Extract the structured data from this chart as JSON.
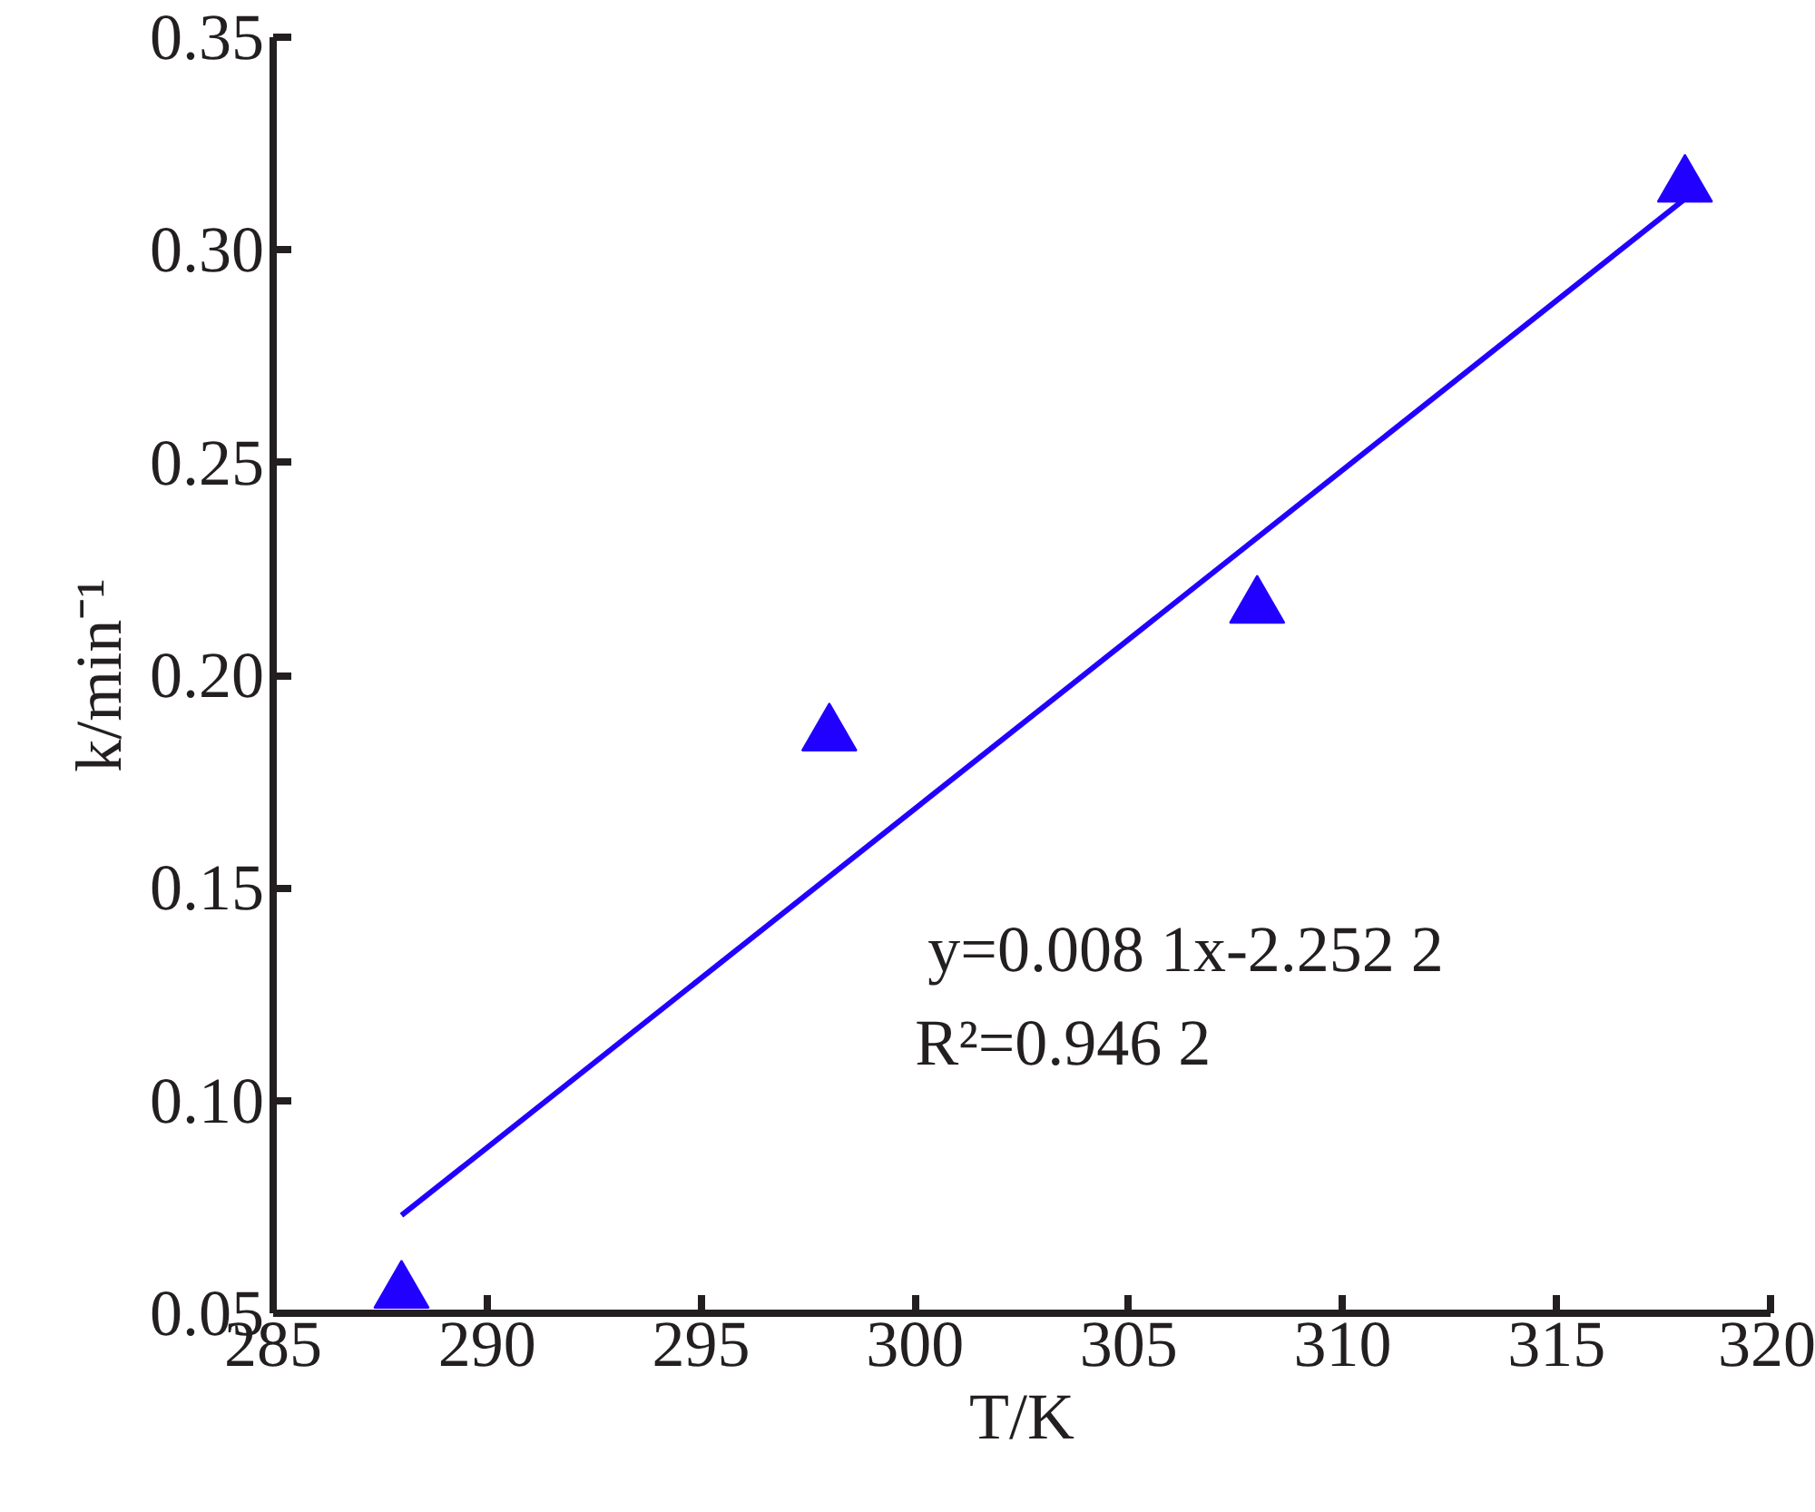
{
  "chart_data": {
    "type": "scatter",
    "xlabel": "T/K",
    "ylabel": "k/min⁻¹",
    "xlim": [
      285,
      320
    ],
    "ylim": [
      0.05,
      0.35
    ],
    "xticks": [
      285,
      290,
      295,
      300,
      305,
      310,
      315,
      320
    ],
    "yticks": [
      {
        "value": 0.05,
        "label": "0.05"
      },
      {
        "value": 0.1,
        "label": "0.10"
      },
      {
        "value": 0.15,
        "label": "0.15"
      },
      {
        "value": 0.2,
        "label": "0.20"
      },
      {
        "value": 0.25,
        "label": "0.25"
      },
      {
        "value": 0.3,
        "label": "0.30"
      },
      {
        "value": 0.35,
        "label": "0.35"
      }
    ],
    "grid": false,
    "series": [
      {
        "marker": "triangle",
        "color": "#2200ff",
        "x": [
          288,
          298,
          308,
          318
        ],
        "values": [
          0.055,
          0.186,
          0.216,
          0.315
        ]
      },
      {
        "type": "line",
        "marker": "none",
        "color": "#2200ff",
        "x": [
          288,
          318
        ],
        "values": [
          0.073,
          0.312
        ]
      }
    ],
    "annotations": [
      {
        "text": "y=0.008 1x-2.252 2"
      },
      {
        "text": "R²=0.946 2"
      }
    ]
  }
}
